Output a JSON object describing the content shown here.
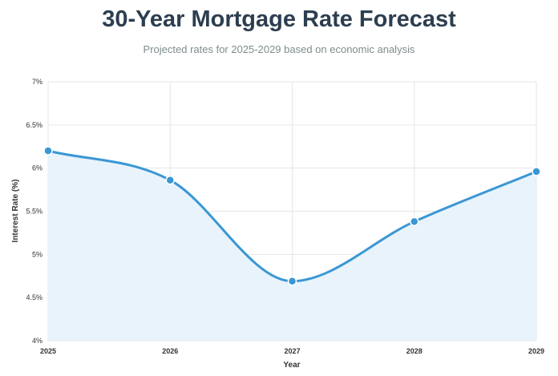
{
  "chart_data": {
    "type": "line",
    "title": "30-Year Mortgage Rate Forecast",
    "subtitle": "Projected rates for 2025-2029 based on economic analysis",
    "xlabel": "Year",
    "ylabel": "Interest Rate (%)",
    "x": [
      "2025",
      "2026",
      "2027",
      "2028",
      "2029"
    ],
    "series": [
      {
        "values": [
          6.2,
          5.86,
          4.69,
          5.38,
          5.96
        ]
      }
    ],
    "ylim": [
      4,
      7
    ],
    "yticks": [
      4,
      4.5,
      5,
      5.5,
      6,
      6.5,
      7
    ],
    "ytick_labels": [
      "4%",
      "4.5%",
      "5%",
      "5.5%",
      "6%",
      "6.5%",
      "7%"
    ],
    "grid": true,
    "fill_area": true,
    "colors": {
      "line": "#3a97d4",
      "fill": "#e8f3fb",
      "grid": "#e6e6e6"
    }
  }
}
